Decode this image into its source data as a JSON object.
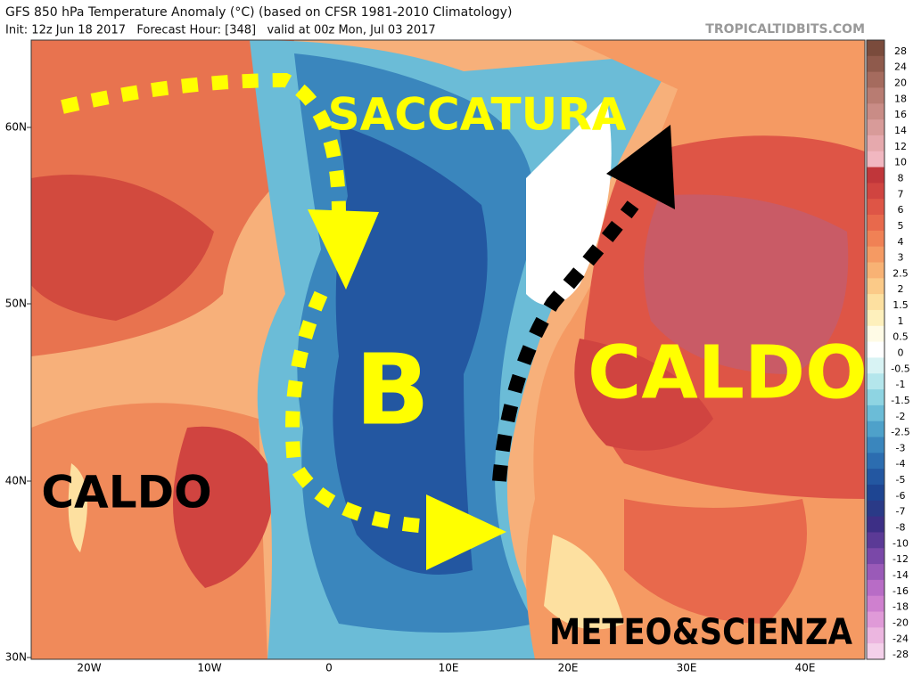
{
  "header": {
    "title": "GFS 850 hPa Temperature Anomaly (°C) (based on CFSR 1981-2010 Climatology)",
    "subtitle": "Init: 12z Jun 18 2017   Forecast Hour: [348]   valid at 00z Mon, Jul 03 2017",
    "source": "TROPICALTIDBITS.COM"
  },
  "map": {
    "lat_labels": [
      "60N",
      "50N",
      "40N",
      "30N"
    ],
    "lon_labels": [
      "20W",
      "10W",
      "0",
      "10E",
      "20E",
      "30E",
      "40E"
    ],
    "annotations": [
      "SACCATURA",
      "B",
      "CALDO",
      "CALDO",
      "METEO&SCIENZA"
    ]
  },
  "colorbar": {
    "levels": [
      28,
      24,
      20,
      18,
      16,
      14,
      12,
      10,
      8,
      7,
      6,
      5,
      4,
      3,
      2.5,
      2,
      1.5,
      1,
      0.5,
      0,
      -0.5,
      -1,
      -1.5,
      -2,
      -2.5,
      -3,
      -4,
      -5,
      -6,
      -7,
      -8,
      -10,
      -12,
      -14,
      -16,
      -18,
      -20,
      -24,
      -28
    ],
    "colors": [
      "#7a4b3c",
      "#8f5a4c",
      "#a56b5e",
      "#b87c72",
      "#c98c86",
      "#d89b99",
      "#e6a9ad",
      "#f1b7c0",
      "#c0363a",
      "#d04440",
      "#de5546",
      "#e8694c",
      "#f08155",
      "#f59a63",
      "#f8b274",
      "#fbca88",
      "#fde0a0",
      "#fef0bc",
      "#fffbe6",
      "#ffffff",
      "#d8f3f4",
      "#b4e6ec",
      "#8ed4e2",
      "#6bbcd7",
      "#4ea1ca",
      "#3a86bd",
      "#2c6db0",
      "#2357a1",
      "#1e4592",
      "#2a3a87",
      "#3d2f86",
      "#5b3a96",
      "#7a48a8",
      "#9a5ab8",
      "#b86cc6",
      "#cf80cf",
      "#e09ad8",
      "#ecb6e0",
      "#f4d0ea"
    ]
  }
}
